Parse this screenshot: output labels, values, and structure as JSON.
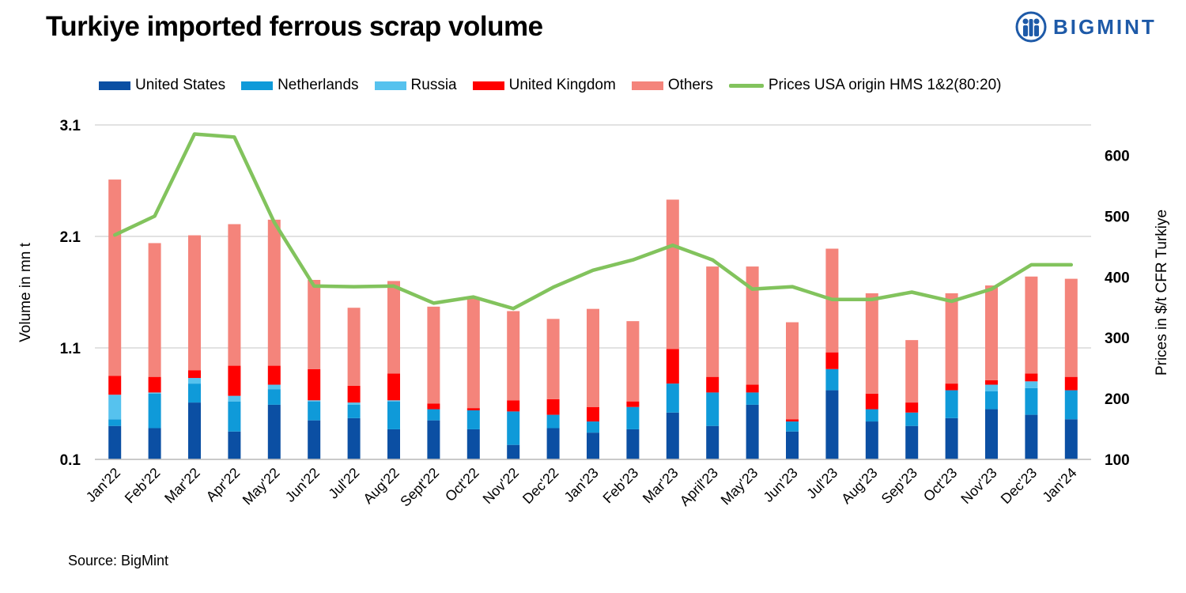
{
  "title": "Turkiye imported ferrous scrap volume",
  "brand": "BIGMINT",
  "source": "Source: BigMint",
  "colors": {
    "United States": "#0b4fa3",
    "Netherlands": "#0f9ad9",
    "Russia": "#56c2ee",
    "United Kingdom": "#ff0000",
    "Others": "#f4847b",
    "price": "#82c35d",
    "grid": "#d9d9d9",
    "brand": "#1e5aa8"
  },
  "chart_data": {
    "type": "bar",
    "stacked": true,
    "title": "Turkiye imported ferrous scrap volume",
    "categories": [
      "Jan'22",
      "Feb'22",
      "Mar'22",
      "Apr'22",
      "May'22",
      "Jun'22",
      "Jul'22",
      "Aug'22",
      "Sept'22",
      "Oct'22",
      "Nov'22",
      "Dec'22",
      "Jan'23",
      "Feb'23",
      "Mar'23",
      "April'23",
      "May'23",
      "Jun'23",
      "Jul'23",
      "Aug'23",
      "Sep'23",
      "Oct'23",
      "Nov'23",
      "Dec'23",
      "Jan'24"
    ],
    "ylabel": "Volume in mn t",
    "ylabel_right": "Prices in $/t CFR Turkiye",
    "ylim": [
      0.1,
      3.1
    ],
    "yticks": [
      "0.1",
      "1.1",
      "2.1",
      "3.1"
    ],
    "ylim_right": [
      100,
      650
    ],
    "yticks_right": [
      "100",
      "200",
      "300",
      "400",
      "500",
      "600"
    ],
    "series": [
      {
        "name": "United States",
        "values": [
          0.3,
          0.28,
          0.51,
          0.25,
          0.49,
          0.35,
          0.37,
          0.27,
          0.35,
          0.27,
          0.13,
          0.28,
          0.24,
          0.27,
          0.42,
          0.3,
          0.49,
          0.25,
          0.62,
          0.34,
          0.3,
          0.37,
          0.45,
          0.4,
          0.36
        ]
      },
      {
        "name": "Netherlands",
        "values": [
          0.06,
          0.31,
          0.17,
          0.27,
          0.14,
          0.17,
          0.12,
          0.25,
          0.1,
          0.17,
          0.3,
          0.12,
          0.1,
          0.2,
          0.26,
          0.3,
          0.11,
          0.09,
          0.19,
          0.11,
          0.12,
          0.25,
          0.16,
          0.24,
          0.26
        ]
      },
      {
        "name": "Russia",
        "values": [
          0.22,
          0.01,
          0.05,
          0.05,
          0.04,
          0.01,
          0.02,
          0.01,
          0.0,
          0.0,
          0.0,
          0.0,
          0.0,
          0.0,
          0.0,
          0.0,
          0.0,
          0.0,
          0.0,
          0.0,
          0.0,
          0.0,
          0.06,
          0.06,
          0.0
        ]
      },
      {
        "name": "United Kingdom",
        "values": [
          0.17,
          0.14,
          0.07,
          0.27,
          0.17,
          0.28,
          0.15,
          0.24,
          0.05,
          0.02,
          0.1,
          0.14,
          0.13,
          0.05,
          0.31,
          0.14,
          0.07,
          0.02,
          0.15,
          0.14,
          0.09,
          0.06,
          0.04,
          0.07,
          0.12
        ]
      },
      {
        "name": "Others",
        "values": [
          1.76,
          1.2,
          1.21,
          1.27,
          1.31,
          0.8,
          0.7,
          0.83,
          0.87,
          0.98,
          0.8,
          0.72,
          0.88,
          0.72,
          1.34,
          0.99,
          1.06,
          0.87,
          0.93,
          0.9,
          0.56,
          0.81,
          0.85,
          0.87,
          0.88
        ]
      }
    ],
    "line_series": {
      "name": "Prices USA origin HMS 1&2(80:20)",
      "axis": "right",
      "values": [
        469,
        500,
        635,
        630,
        490,
        385,
        384,
        385,
        357,
        367,
        348,
        383,
        411,
        428,
        452,
        428,
        380,
        384,
        363,
        363,
        375,
        360,
        380,
        420,
        420
      ]
    },
    "legend": "top",
    "grid": true
  }
}
